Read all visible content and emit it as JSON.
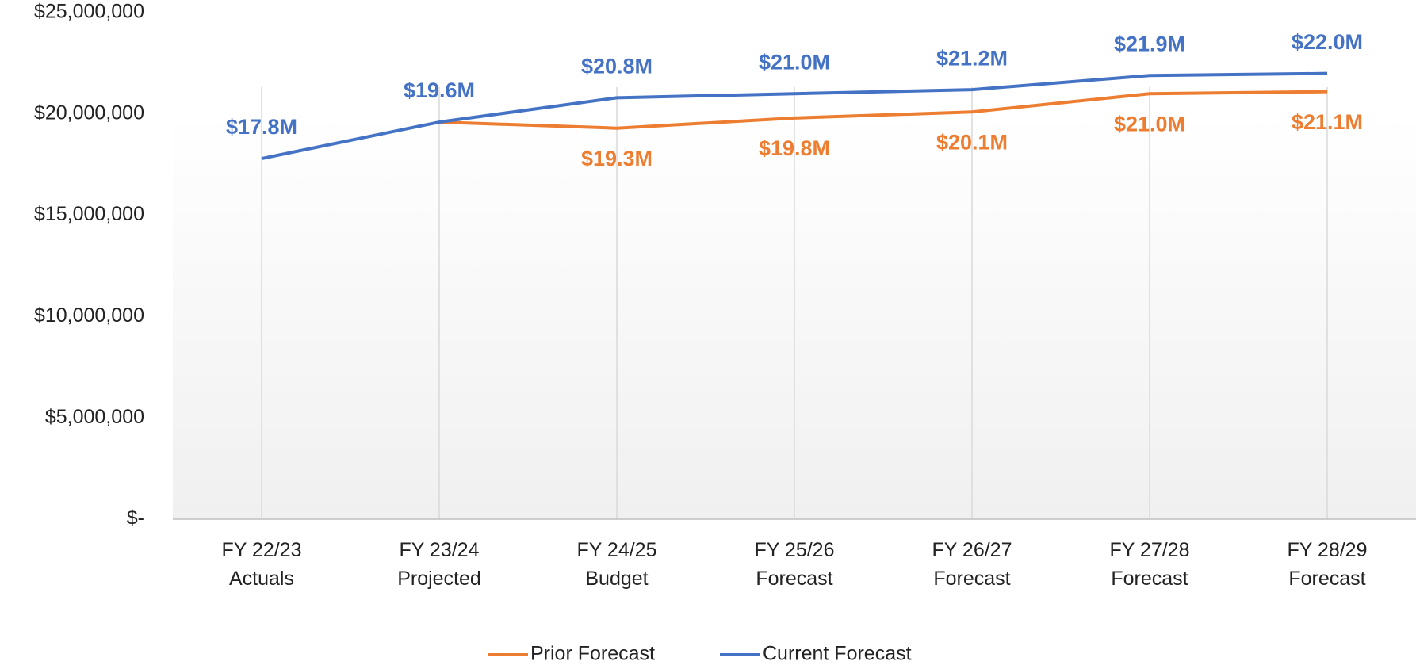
{
  "chart_data": {
    "type": "line",
    "categories": [
      [
        "FY 22/23",
        "Actuals"
      ],
      [
        "FY 23/24",
        "Projected"
      ],
      [
        "FY 24/25",
        "Budget"
      ],
      [
        "FY 25/26",
        "Forecast"
      ],
      [
        "FY 26/27",
        "Forecast"
      ],
      [
        "FY 27/28",
        "Forecast"
      ],
      [
        "FY 28/29",
        "Forecast"
      ]
    ],
    "series": [
      {
        "name": "Prior Forecast",
        "color": "#ed7d31",
        "values": [
          null,
          19600000,
          19300000,
          19800000,
          20100000,
          21000000,
          21100000
        ],
        "value_labels": [
          null,
          null,
          "$19.3M",
          "$19.8M",
          "$20.1M",
          "$21.0M",
          "$21.1M"
        ]
      },
      {
        "name": "Current Forecast",
        "color": "#4472c4",
        "values": [
          17800000,
          19600000,
          20800000,
          21000000,
          21200000,
          21900000,
          22000000
        ],
        "value_labels": [
          "$17.8M",
          "$19.6M",
          "$20.8M",
          "$21.0M",
          "$21.2M",
          "$21.9M",
          "$22.0M"
        ]
      }
    ],
    "ylim": [
      0,
      25000000
    ],
    "yticks": [
      {
        "value": 0,
        "label": "$-"
      },
      {
        "value": 5000000,
        "label": "$5,000,000"
      },
      {
        "value": 10000000,
        "label": "$10,000,000"
      },
      {
        "value": 15000000,
        "label": "$15,000,000"
      },
      {
        "value": 20000000,
        "label": "$20,000,000"
      },
      {
        "value": 25000000,
        "label": "$25,000,000"
      }
    ],
    "grid": "x",
    "legend": "bottom"
  }
}
